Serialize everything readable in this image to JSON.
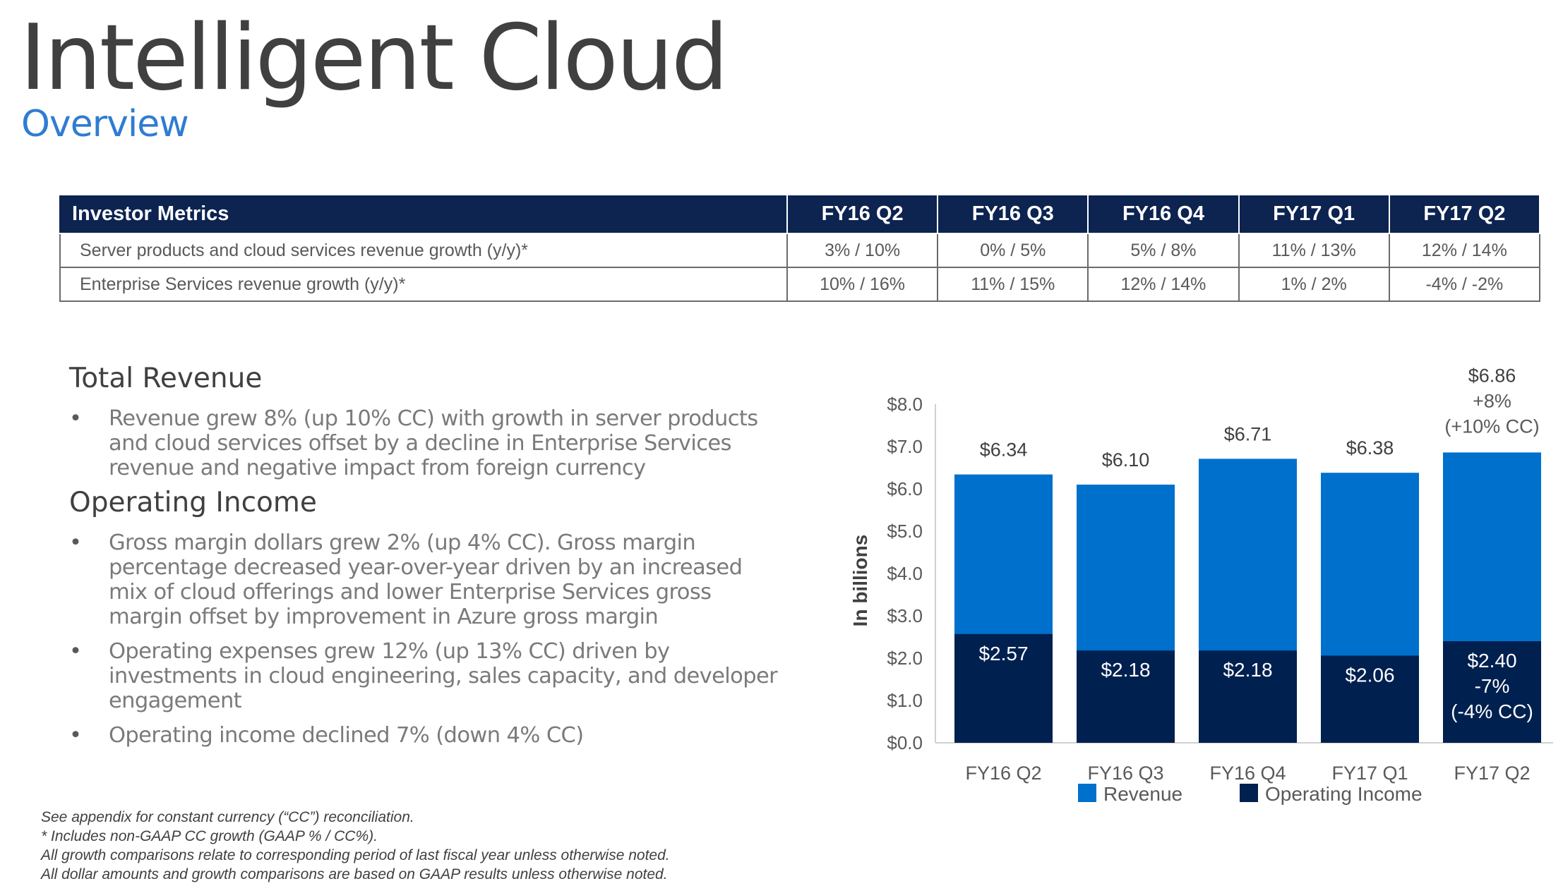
{
  "header": {
    "title": "Intelligent Cloud",
    "subtitle": "Overview"
  },
  "metrics_table": {
    "columns": [
      "Investor Metrics",
      "FY16 Q2",
      "FY16 Q3",
      "FY16 Q4",
      "FY17 Q1",
      "FY17 Q2"
    ],
    "rows": [
      [
        "Server products and cloud services revenue growth (y/y)*",
        "3% / 10%",
        "0% / 5%",
        "5% / 8%",
        "11% / 13%",
        "12% / 14%"
      ],
      [
        "Enterprise Services revenue growth (y/y)*",
        "10% / 16%",
        "11% / 15%",
        "12% / 14%",
        "1% / 2%",
        "-4% / -2%"
      ]
    ]
  },
  "commentary": {
    "total_revenue": {
      "title": "Total Revenue",
      "bullets": [
        "Revenue grew 8% (up 10% CC) with growth in server products and cloud services offset by a decline in Enterprise Services revenue and negative impact from foreign currency"
      ]
    },
    "operating_income": {
      "title": "Operating Income",
      "bullets": [
        "Gross margin dollars grew 2% (up 4% CC). Gross margin percentage decreased year-over-year driven by an increased mix of cloud offerings and lower Enterprise Services gross margin offset by improvement in Azure gross margin",
        "Operating expenses grew 12% (up 13% CC) driven by investments in cloud engineering, sales capacity, and developer engagement",
        "Operating income declined 7% (down 4% CC)"
      ]
    }
  },
  "footnotes": [
    "See appendix for constant currency (“CC”) reconciliation.",
    "* Includes non-GAAP CC growth (GAAP % / CC%).",
    "All growth comparisons relate to corresponding period of last fiscal year unless otherwise noted.",
    "All dollar amounts and growth comparisons are based on GAAP results unless otherwise noted."
  ],
  "colors": {
    "revenue": "#0070CD",
    "operating_income": "#00204F",
    "header_bg": "#0D2350",
    "subtitle": "#2F7CD2"
  },
  "chart_data": {
    "type": "bar",
    "stacking": "overlay",
    "categories": [
      "FY16 Q2",
      "FY16 Q3",
      "FY16 Q4",
      "FY17 Q1",
      "FY17 Q2"
    ],
    "series": [
      {
        "name": "Revenue",
        "values": [
          6.34,
          6.1,
          6.71,
          6.38,
          6.86
        ],
        "labels": [
          "$6.34",
          "$6.10",
          "$6.71",
          "$6.38",
          "$6.86"
        ]
      },
      {
        "name": "Operating Income",
        "values": [
          2.57,
          2.18,
          2.18,
          2.06,
          2.4
        ],
        "labels": [
          "$2.57",
          "$2.18",
          "$2.18",
          "$2.06",
          "$2.40"
        ]
      }
    ],
    "annotations": {
      "revenue_last": [
        "+8%",
        "(+10% CC)"
      ],
      "oi_last": [
        "-7%",
        "(-4% CC)"
      ]
    },
    "ylabel": "In billions",
    "ylim": [
      0,
      8
    ],
    "yticks": [
      "$0.0",
      "$1.0",
      "$2.0",
      "$3.0",
      "$4.0",
      "$5.0",
      "$6.0",
      "$7.0",
      "$8.0"
    ],
    "grid": false,
    "legend": "bottom"
  }
}
